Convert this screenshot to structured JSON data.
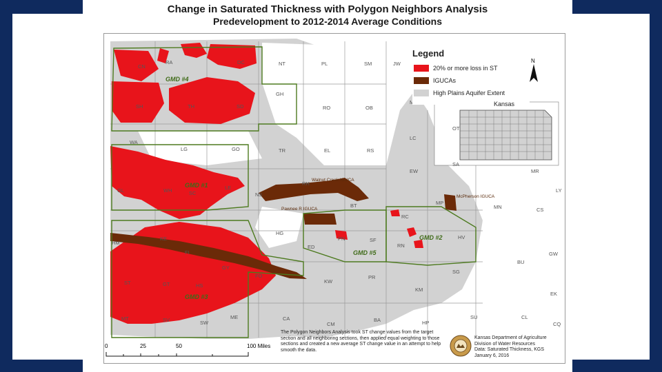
{
  "title": {
    "line1": "Change in Saturated Thickness with Polygon Neighbors Analysis",
    "line2": "Predevelopment to 2012-2014 Average Conditions"
  },
  "legend": {
    "title": "Legend",
    "items": [
      {
        "label": "20% or more loss in ST",
        "color": "#e8141b"
      },
      {
        "label": "IGUCAs",
        "color": "#6b2a08"
      },
      {
        "label": "High Plains Aquifer Extent",
        "color": "#d2d2d2"
      }
    ]
  },
  "north_label": "N",
  "inset_label": "Kansas",
  "counties": [
    {
      "name": "NT"
    },
    {
      "name": "PL"
    },
    {
      "name": "SM"
    },
    {
      "name": "JW"
    },
    {
      "name": "GH"
    },
    {
      "name": "RO"
    },
    {
      "name": "OB"
    },
    {
      "name": "MC"
    },
    {
      "name": "TH"
    },
    {
      "name": "SH"
    },
    {
      "name": "SD"
    },
    {
      "name": "WA"
    },
    {
      "name": "LG"
    },
    {
      "name": "GO"
    },
    {
      "name": "TR"
    },
    {
      "name": "EL"
    },
    {
      "name": "RS"
    },
    {
      "name": "LC"
    },
    {
      "name": "OT"
    },
    {
      "name": "SA"
    },
    {
      "name": "EW"
    },
    {
      "name": "RH"
    },
    {
      "name": "MP"
    },
    {
      "name": "MN"
    },
    {
      "name": "MR"
    },
    {
      "name": "CS"
    },
    {
      "name": "GL"
    },
    {
      "name": "WH"
    },
    {
      "name": "SC"
    },
    {
      "name": "LE"
    },
    {
      "name": "NS"
    },
    {
      "name": "BT"
    },
    {
      "name": "RC"
    },
    {
      "name": "HV"
    },
    {
      "name": "HM"
    },
    {
      "name": "KE"
    },
    {
      "name": "FI"
    },
    {
      "name": "HG"
    },
    {
      "name": "ED"
    },
    {
      "name": "PN"
    },
    {
      "name": "SF"
    },
    {
      "name": "RN"
    },
    {
      "name": "GY"
    },
    {
      "name": "FO"
    },
    {
      "name": "KW"
    },
    {
      "name": "PR"
    },
    {
      "name": "SG"
    },
    {
      "name": "BU"
    },
    {
      "name": "GW"
    },
    {
      "name": "ST"
    },
    {
      "name": "GT"
    },
    {
      "name": "HS"
    },
    {
      "name": "KM"
    },
    {
      "name": "EK"
    },
    {
      "name": "MT"
    },
    {
      "name": "SV"
    },
    {
      "name": "SW"
    },
    {
      "name": "ME"
    },
    {
      "name": "CA"
    },
    {
      "name": "CM"
    },
    {
      "name": "BA"
    },
    {
      "name": "HP"
    },
    {
      "name": "SU"
    },
    {
      "name": "CL"
    },
    {
      "name": "CQ"
    },
    {
      "name": "CN"
    },
    {
      "name": "RA"
    },
    {
      "name": "DC"
    },
    {
      "name": "LY"
    }
  ],
  "gmd_labels": [
    "GMD #4",
    "GMD #1",
    "GMD #3",
    "GMD #2",
    "GMD #5"
  ],
  "iguca_labels": [
    "Walnut Creek IGUCA",
    "Pawnee R IGUCA",
    "McPherson IGUCA"
  ],
  "scale": {
    "ticks": [
      "0",
      "25",
      "50",
      "100 Miles"
    ]
  },
  "note": "The Polygon Neighbors Analysis took ST change values from the target section and all neighboring sections, then applied equal weighting to those sections and created a new average ST change value in an attempt to help smooth the data.",
  "agency": {
    "line1": "Kansas Department of Agriculture",
    "line2": "Division of Water Resources",
    "line3": "Data: Saturated Thickness, KGS",
    "line4": "January 6, 2016"
  }
}
